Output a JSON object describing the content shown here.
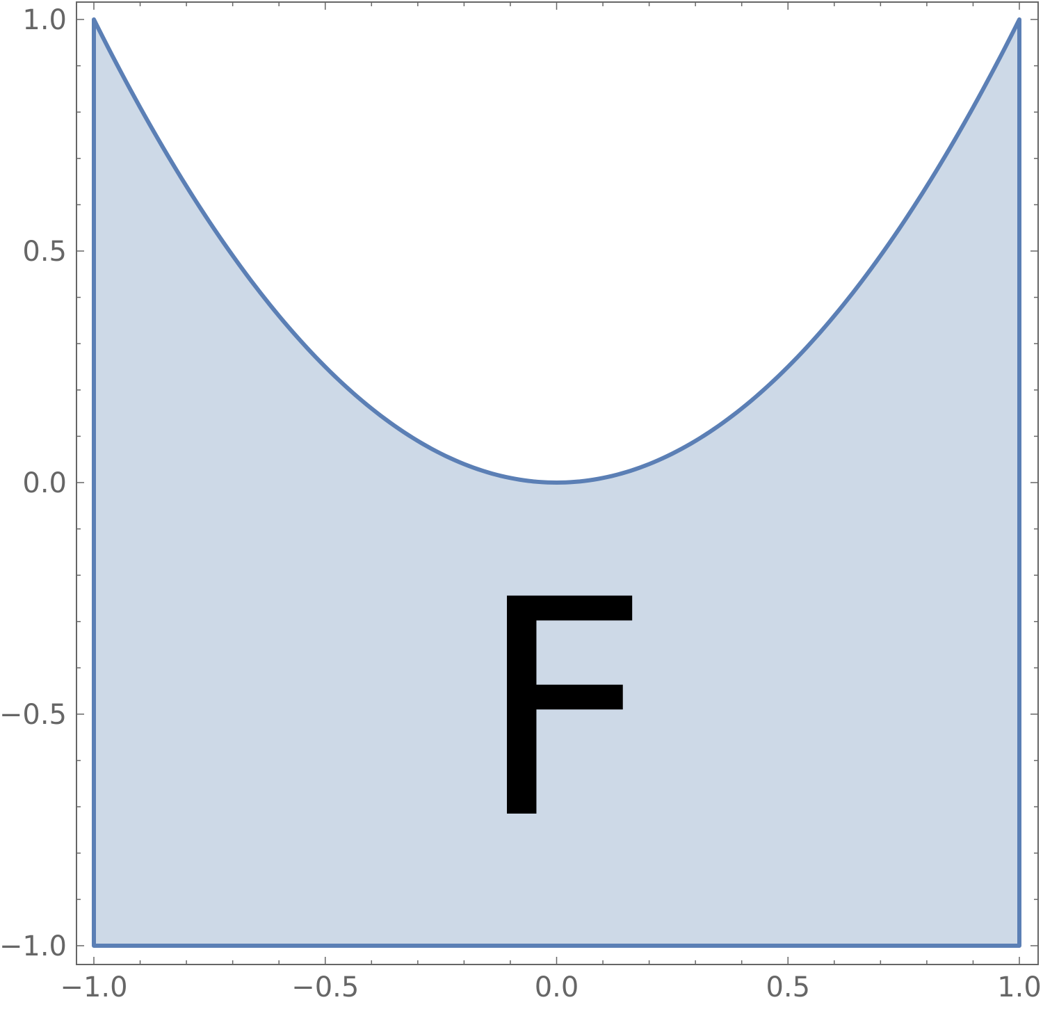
{
  "chart_data": {
    "type": "area",
    "title": "",
    "xlabel": "",
    "ylabel": "",
    "xlim": [
      -1.0,
      1.0
    ],
    "ylim": [
      -1.0,
      1.0
    ],
    "grid": false,
    "series": [
      {
        "curve": "y = x^2",
        "x": [
          -1.0,
          -0.9,
          -0.8,
          -0.7,
          -0.6,
          -0.5,
          -0.4,
          -0.3,
          -0.2,
          -0.1,
          0.0,
          0.1,
          0.2,
          0.3,
          0.4,
          0.5,
          0.6,
          0.7,
          0.8,
          0.9,
          1.0
        ],
        "y": [
          1.0,
          0.81,
          0.64,
          0.49,
          0.36,
          0.25,
          0.16,
          0.09,
          0.04,
          0.01,
          0.0,
          0.01,
          0.04,
          0.09,
          0.16,
          0.25,
          0.36,
          0.49,
          0.64,
          0.81,
          1.0
        ],
        "fill_to": -1.0
      }
    ],
    "x_ticks": [
      {
        "value": -1.0,
        "label": "−1.0"
      },
      {
        "value": -0.5,
        "label": "−0.5"
      },
      {
        "value": 0.0,
        "label": "0.0"
      },
      {
        "value": 0.5,
        "label": "0.5"
      },
      {
        "value": 1.0,
        "label": "1.0"
      }
    ],
    "y_ticks": [
      {
        "value": -1.0,
        "label": "−1.0"
      },
      {
        "value": -0.5,
        "label": "−0.5"
      },
      {
        "value": 0.0,
        "label": "0.0"
      },
      {
        "value": 0.5,
        "label": "0.5"
      },
      {
        "value": 1.0,
        "label": "1.0"
      }
    ],
    "annotations": [
      {
        "text": "F",
        "x": 0.0,
        "y": -0.5
      }
    ],
    "colors": {
      "line": "#5b7fb5",
      "fill": "#cdd9e7",
      "frame": "#666666"
    }
  }
}
